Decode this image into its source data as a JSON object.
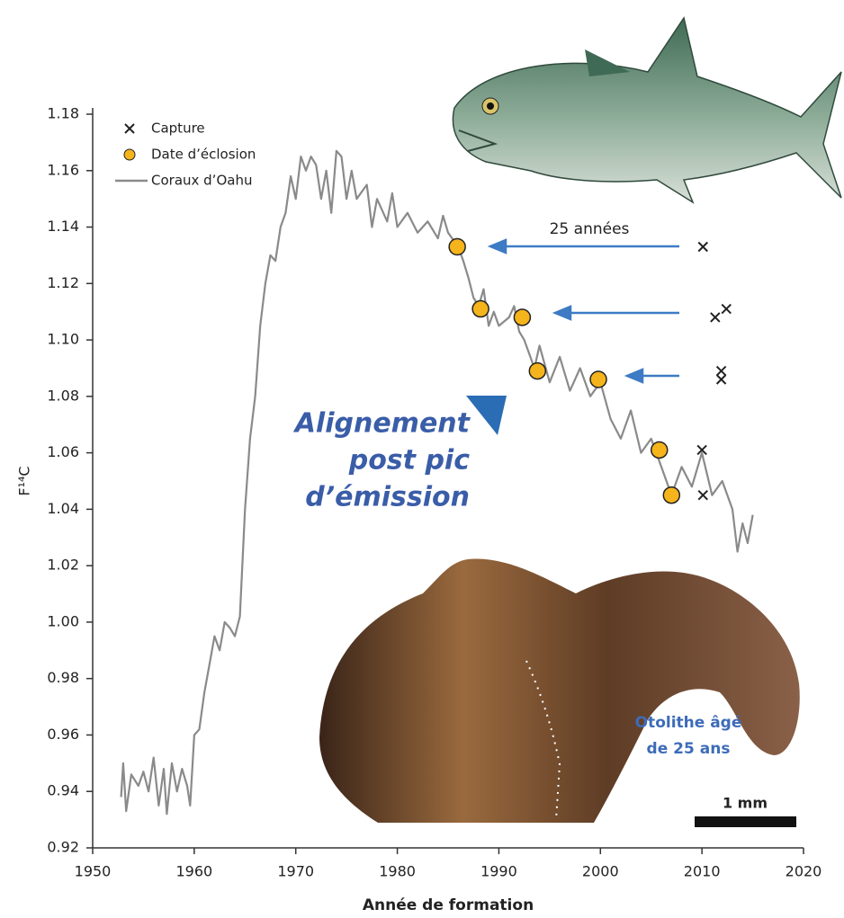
{
  "chart_data": {
    "type": "line",
    "x_label": "Année de formation",
    "y_label": "F¹⁴C",
    "xlim": [
      1950,
      2020
    ],
    "ylim": [
      0.92,
      1.18
    ],
    "xticks": [
      1950,
      1960,
      1970,
      1980,
      1990,
      2000,
      2010,
      2020
    ],
    "yticks": [
      0.92,
      0.94,
      0.96,
      0.98,
      {
        "value": 1.0,
        "label": "1.00"
      },
      1.02,
      1.04,
      1.06,
      1.08,
      {
        "value": 1.1,
        "label": "1.10"
      },
      1.12,
      1.14,
      1.16,
      1.18
    ],
    "legend": "upper left",
    "series": [
      {
        "name": "Capture",
        "marker": "x",
        "color": "#222222",
        "x": [
          2010.1,
          2011.3,
          2012.4,
          2011.9,
          2011.9,
          2010.0,
          2010.1
        ],
        "values": [
          1.133,
          1.108,
          1.111,
          1.089,
          1.086,
          1.061,
          1.045
        ]
      },
      {
        "name": "Date d’éclosion",
        "marker": "circle",
        "color": "#f5b41c",
        "x": [
          1985.9,
          1988.2,
          1992.3,
          1993.8,
          1999.8,
          2005.8,
          2007.0
        ],
        "values": [
          1.133,
          1.111,
          1.108,
          1.089,
          1.086,
          1.061,
          1.045
        ]
      },
      {
        "name": "Coraux d’Oahu",
        "marker": "line",
        "color": "#8a8a8a",
        "x": [
          1952.8,
          1953.0,
          1953.3,
          1953.8,
          1954.5,
          1955.0,
          1955.5,
          1956.0,
          1956.5,
          1957.0,
          1957.3,
          1957.8,
          1958.3,
          1958.8,
          1959.3,
          1959.6,
          1960.0,
          1960.5,
          1961.0,
          1961.5,
          1962.0,
          1962.5,
          1963.0,
          1963.5,
          1964.0,
          1964.5,
          1965.0,
          1965.5,
          1966.0,
          1966.5,
          1967.0,
          1967.5,
          1968.0,
          1968.5,
          1969.0,
          1969.5,
          1970.0,
          1970.5,
          1971.0,
          1971.5,
          1972.0,
          1972.5,
          1973.0,
          1973.5,
          1974.0,
          1974.5,
          1975.0,
          1975.5,
          1976.0,
          1977.0,
          1977.5,
          1978.0,
          1979.0,
          1979.5,
          1980.0,
          1981.0,
          1982.0,
          1983.0,
          1984.0,
          1984.5,
          1985.0,
          1986.0,
          1986.5,
          1987.0,
          1987.5,
          1988.0,
          1988.5,
          1989.0,
          1989.5,
          1990.0,
          1991.0,
          1991.5,
          1992.0,
          1992.5,
          1993.0,
          1993.5,
          1994.0,
          1995.0,
          1996.0,
          1997.0,
          1998.0,
          1999.0,
          2000.0,
          2001.0,
          2002.0,
          2003.0,
          2004.0,
          2005.0,
          2006.0,
          2007.0,
          2008.0,
          2009.0,
          2010.0,
          2011.0,
          2012.0,
          2013.0,
          2013.5,
          2014.0,
          2014.5,
          2015.0
        ],
        "values": [
          0.938,
          0.95,
          0.933,
          0.946,
          0.942,
          0.947,
          0.94,
          0.952,
          0.935,
          0.948,
          0.932,
          0.95,
          0.94,
          0.948,
          0.942,
          0.935,
          0.96,
          0.962,
          0.975,
          0.985,
          0.995,
          0.99,
          1.0,
          0.998,
          0.995,
          1.002,
          1.04,
          1.065,
          1.08,
          1.105,
          1.12,
          1.13,
          1.128,
          1.14,
          1.145,
          1.158,
          1.15,
          1.165,
          1.16,
          1.165,
          1.162,
          1.15,
          1.16,
          1.145,
          1.167,
          1.165,
          1.15,
          1.16,
          1.15,
          1.155,
          1.14,
          1.15,
          1.142,
          1.152,
          1.14,
          1.145,
          1.138,
          1.142,
          1.136,
          1.144,
          1.138,
          1.133,
          1.128,
          1.122,
          1.115,
          1.112,
          1.118,
          1.105,
          1.11,
          1.105,
          1.108,
          1.112,
          1.103,
          1.1,
          1.095,
          1.09,
          1.098,
          1.085,
          1.094,
          1.082,
          1.09,
          1.08,
          1.085,
          1.072,
          1.065,
          1.075,
          1.06,
          1.065,
          1.055,
          1.045,
          1.055,
          1.048,
          1.06,
          1.045,
          1.05,
          1.04,
          1.025,
          1.035,
          1.028,
          1.038
        ]
      }
    ],
    "annotations": [
      "25 années",
      "Alignement",
      "post pic",
      "d’émission",
      "Otolithe âgé",
      "de 25 ans",
      "1 mm"
    ]
  }
}
